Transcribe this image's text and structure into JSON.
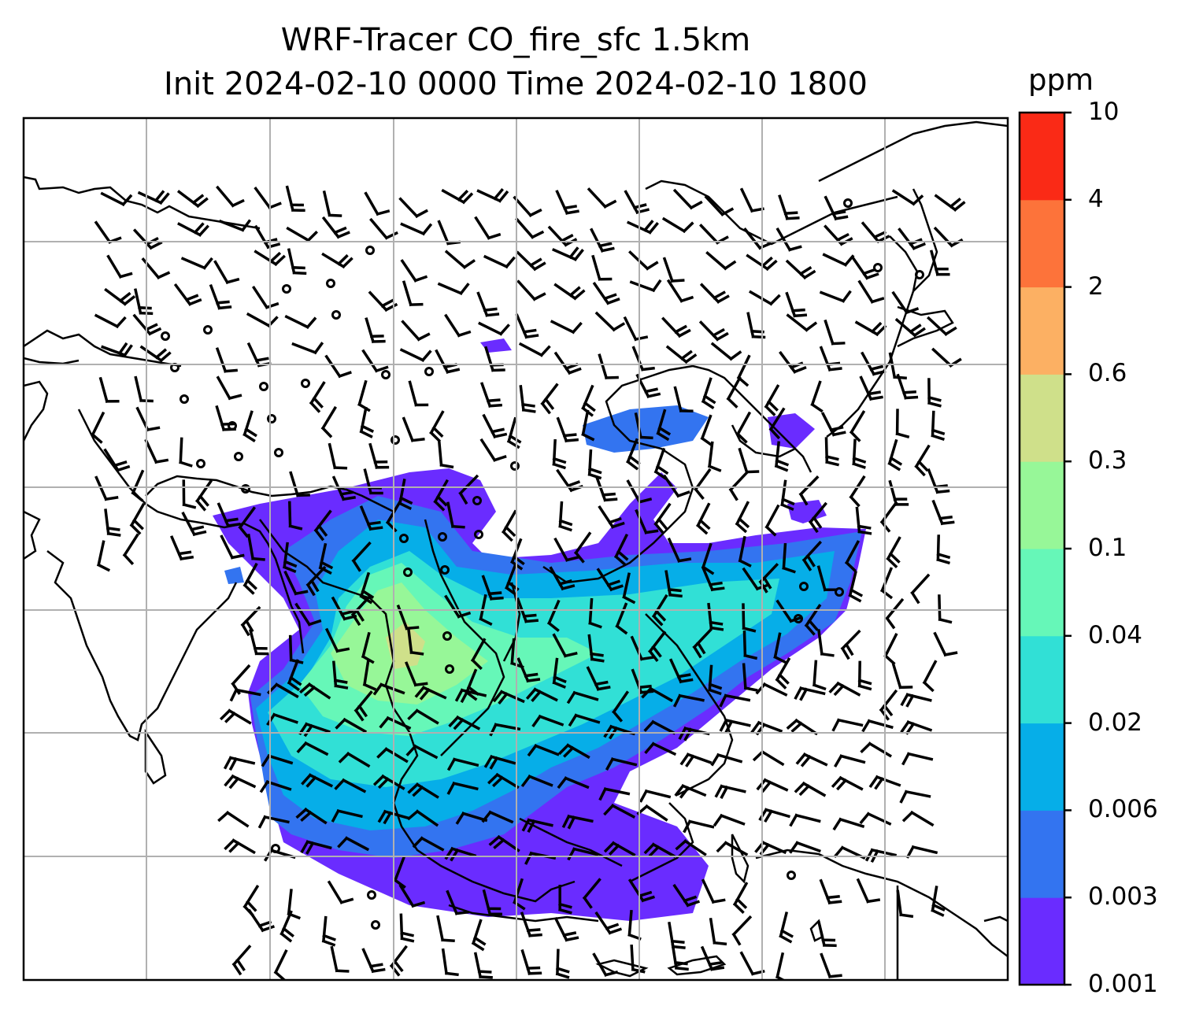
{
  "title": {
    "line1": "WRF-Tracer CO_fire_sfc 1.5km",
    "line2": "Init 2024-02-10 0000 Time 2024-02-10 1800"
  },
  "colorbar": {
    "unit": "ppm",
    "ticks": [
      "0.001",
      "0.003",
      "0.006",
      "0.02",
      "0.04",
      "0.1",
      "0.3",
      "0.6",
      "2",
      "4",
      "10"
    ],
    "colors": [
      "#6a2cff",
      "#3374f0",
      "#06aee8",
      "#31e0d6",
      "#66f7b8",
      "#97f798",
      "#cfe08a",
      "#fcb063",
      "#fd733a",
      "#fa2a16"
    ]
  },
  "colors": {
    "coastline": "#000000",
    "gridline": "#b0b0b0",
    "wind_barb": "#000000"
  }
}
